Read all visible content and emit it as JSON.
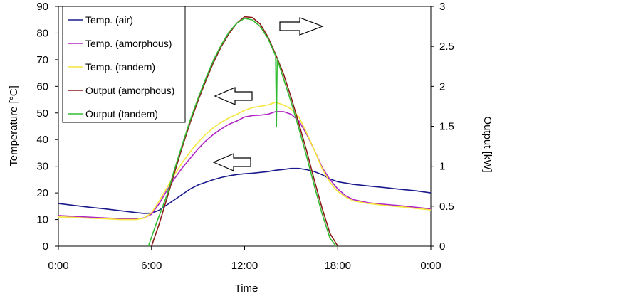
{
  "chart_data": {
    "type": "line",
    "xlabel": "Time",
    "ylabel_left": "Temperature [°C]",
    "ylabel_right": "Output [kW]",
    "x_ticks": [
      "0:00",
      "6:00",
      "12:00",
      "18:00",
      "0:00"
    ],
    "x_range_hours": [
      0,
      24
    ],
    "ylim_left": [
      0,
      90
    ],
    "ylim_right": [
      0,
      3
    ],
    "y_ticks_left": [
      "0",
      "10",
      "20",
      "30",
      "40",
      "50",
      "60",
      "70",
      "80",
      "90"
    ],
    "y_ticks_right": [
      "0",
      "0.5",
      "1",
      "1.5",
      "2",
      "2.5",
      "3"
    ],
    "grid": false,
    "legend_position": "top-left",
    "series": [
      {
        "name": "Temp. (air)",
        "axis": "left",
        "color": "#1a1a8c",
        "x": [
          0,
          1,
          2,
          3,
          4,
          5,
          5.5,
          6,
          6.5,
          7,
          7.5,
          8,
          8.5,
          9,
          9.5,
          10,
          10.5,
          11,
          11.5,
          12,
          12.5,
          13,
          13.5,
          14,
          14.5,
          15,
          15.5,
          16,
          16.5,
          17,
          17.5,
          18,
          19,
          20,
          21,
          22,
          23,
          24
        ],
        "y": [
          16,
          15.3,
          14.6,
          14,
          13.3,
          12.6,
          12.3,
          12.4,
          13.5,
          15.5,
          17.5,
          19.5,
          21.5,
          23,
          24,
          25,
          25.8,
          26.4,
          26.9,
          27.2,
          27.4,
          27.7,
          28,
          28.5,
          28.8,
          29.2,
          29.2,
          28.7,
          28,
          26.8,
          25.2,
          24.2,
          23.2,
          22.6,
          22,
          21.4,
          20.8,
          20
        ]
      },
      {
        "name": "Temp. (amorphous)",
        "axis": "left",
        "color": "#b026c4",
        "x": [
          0,
          1,
          2,
          3,
          4,
          5,
          5.5,
          6,
          6.5,
          7,
          7.5,
          8,
          8.5,
          9,
          9.5,
          10,
          10.5,
          11,
          11.5,
          12,
          12.5,
          13,
          13.5,
          14,
          14.5,
          15,
          15.5,
          16,
          16.5,
          17,
          17.5,
          18,
          18.5,
          19,
          20,
          21,
          22,
          23,
          24
        ],
        "y": [
          11.5,
          11.2,
          10.9,
          10.6,
          10.3,
          10.2,
          10.6,
          12,
          16,
          21,
          25.5,
          29.5,
          33,
          36.5,
          39.5,
          42,
          44,
          45.8,
          47,
          48.5,
          49,
          49.2,
          49.5,
          50.5,
          50.5,
          49.5,
          47,
          42,
          36,
          29.5,
          25,
          21.5,
          19,
          17.5,
          16.3,
          15.7,
          15.2,
          14.6,
          14
        ]
      },
      {
        "name": "Temp. (tandem)",
        "axis": "left",
        "color": "#f4e63a",
        "x": [
          0,
          1,
          2,
          3,
          4,
          5,
          5.5,
          6,
          6.5,
          7,
          7.5,
          8,
          8.5,
          9,
          9.5,
          10,
          10.5,
          11,
          11.5,
          12,
          12.5,
          13,
          13.5,
          14,
          14.5,
          15,
          15.5,
          16,
          16.5,
          17,
          17.5,
          18,
          18.5,
          19,
          20,
          21,
          22,
          23,
          24
        ],
        "y": [
          11,
          10.8,
          10.5,
          10.3,
          10,
          10,
          10.5,
          12.5,
          17,
          22,
          27,
          31.5,
          35.5,
          39,
          42,
          44.5,
          46.5,
          48.2,
          49.5,
          51,
          52,
          52.5,
          53,
          54,
          53,
          51.5,
          48.5,
          42.5,
          36,
          29,
          24,
          20.5,
          18.5,
          17,
          16,
          15.3,
          14.8,
          14.2,
          13.6
        ]
      },
      {
        "name": "Output (amorphous)",
        "axis": "right",
        "color": "#8b1a1a",
        "x": [
          6,
          6.5,
          7,
          7.5,
          8,
          8.5,
          9,
          9.5,
          10,
          10.5,
          11,
          11.5,
          12,
          12.5,
          13,
          13.5,
          14,
          14.5,
          15,
          15.5,
          16,
          16.5,
          17,
          17.5,
          18
        ],
        "y": [
          0,
          0.28,
          0.6,
          0.93,
          1.25,
          1.55,
          1.82,
          2.07,
          2.3,
          2.5,
          2.66,
          2.79,
          2.87,
          2.86,
          2.78,
          2.62,
          2.4,
          2.16,
          1.86,
          1.53,
          1.19,
          0.82,
          0.47,
          0.16,
          0
        ]
      },
      {
        "name": "Output (tandem)",
        "axis": "right",
        "color": "#33bb33",
        "x": [
          5.8,
          6.3,
          7,
          7.5,
          8,
          8.5,
          9,
          9.5,
          10,
          10.5,
          11,
          11.5,
          12,
          12.5,
          13,
          13.5,
          14,
          14.05,
          14.1,
          14.5,
          15,
          15.5,
          16,
          16.5,
          17,
          17.5,
          17.9
        ],
        "y": [
          0,
          0.28,
          0.64,
          0.97,
          1.28,
          1.58,
          1.85,
          2.1,
          2.33,
          2.52,
          2.68,
          2.79,
          2.85,
          2.83,
          2.75,
          2.6,
          2.38,
          1.5,
          2.34,
          2.1,
          1.8,
          1.47,
          1.12,
          0.75,
          0.4,
          0.1,
          0
        ]
      }
    ]
  }
}
